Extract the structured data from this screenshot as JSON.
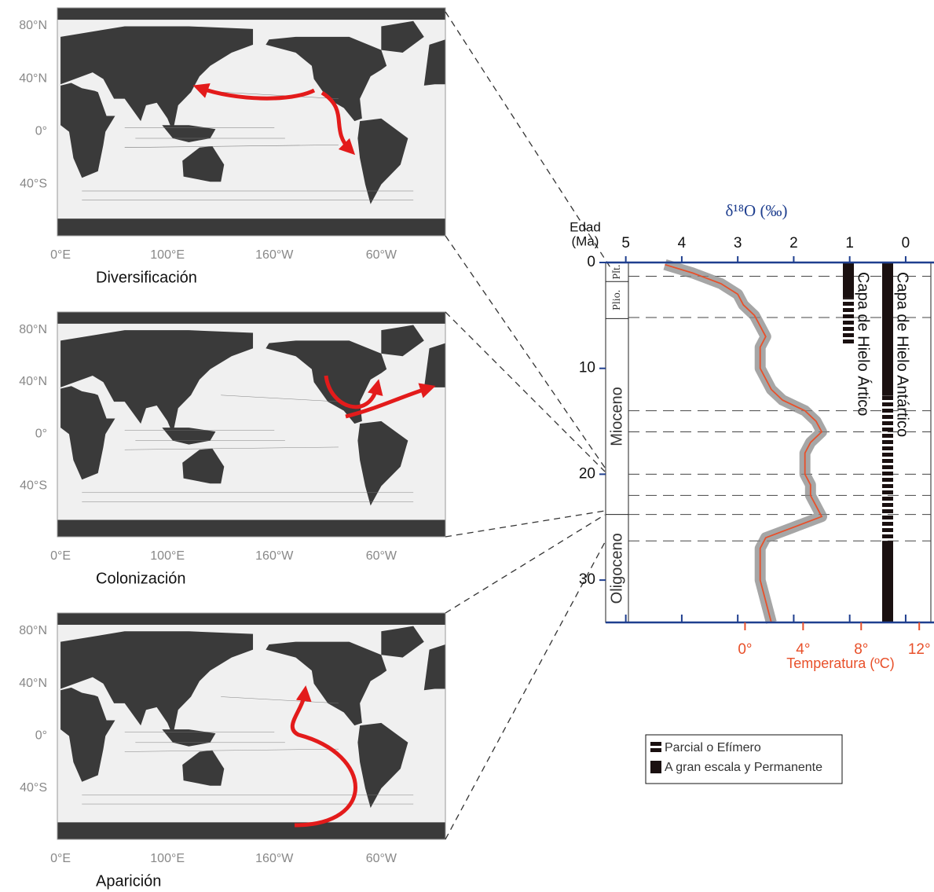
{
  "maps": [
    {
      "caption": "Diversificación",
      "lat_labels": [
        "80°N",
        "40°N",
        "0°",
        "40°S"
      ],
      "lon_labels": [
        "0°E",
        "100°E",
        "160°W",
        "60°W"
      ]
    },
    {
      "caption": "Colonización",
      "lat_labels": [
        "80°N",
        "40°N",
        "0°",
        "40°S"
      ],
      "lon_labels": [
        "0°E",
        "100°E",
        "160°W",
        "60°W"
      ]
    },
    {
      "caption": "Aparición",
      "lat_labels": [
        "80°N",
        "40°N",
        "0°",
        "40°S"
      ],
      "lon_labels": [
        "0°E",
        "100°E",
        "160°W",
        "60°W"
      ]
    }
  ],
  "chart_data": {
    "type": "line",
    "x_label": "δ¹⁸O (‰)",
    "x2_label": "Temperatura (ºC)",
    "y_label": "Edad",
    "y_label_unit": "(Ma)",
    "xlim": [
      5.36,
      -0.45
    ],
    "xticks": [
      5,
      4,
      3,
      2,
      1,
      0
    ],
    "x2lim": [
      -9.6,
      12.8
    ],
    "x2ticks": [
      {
        "value": 0,
        "label": "0°"
      },
      {
        "value": 4,
        "label": "4°"
      },
      {
        "value": 8,
        "label": "8°"
      },
      {
        "value": 12,
        "label": "12°"
      }
    ],
    "ylim": [
      0,
      34
    ],
    "yticks": [
      0,
      10,
      20,
      30
    ],
    "series": [
      {
        "color": "#e8502a",
        "ages": [
          0.2,
          1,
          2,
          3,
          4,
          5,
          6,
          7,
          8,
          10,
          12,
          13,
          14,
          15,
          16,
          17,
          18,
          19,
          20,
          21,
          22,
          23,
          24,
          25,
          26,
          27,
          28,
          30,
          32,
          34
        ],
        "values": [
          4.3,
          3.8,
          3.3,
          3.0,
          2.9,
          2.7,
          2.6,
          2.5,
          2.6,
          2.6,
          2.4,
          2.2,
          1.8,
          1.6,
          1.5,
          1.7,
          1.8,
          1.8,
          1.8,
          1.7,
          1.7,
          1.6,
          1.5,
          2.0,
          2.5,
          2.6,
          2.6,
          2.6,
          2.5,
          2.4
        ]
      }
    ],
    "epochs": [
      {
        "label": "Plt.",
        "from": 0,
        "to": 1.8
      },
      {
        "label": "Plio.",
        "from": 1.8,
        "to": 5.3
      },
      {
        "label": "Mioceno",
        "from": 5.3,
        "to": 23.8
      },
      {
        "label": "Oligoceno",
        "from": 23.8,
        "to": 34
      }
    ],
    "event_lines": [
      1.3,
      5.2,
      14,
      16,
      20,
      22,
      23.8,
      26.3
    ],
    "ice_sheets": [
      {
        "label": "Capa de Hielo Ártico",
        "permanent": [
          [
            0,
            3.4
          ]
        ],
        "partial": [
          [
            3.4,
            7.7
          ]
        ]
      },
      {
        "label": "Capa de Hielo Antártico",
        "permanent": [
          [
            0,
            12.6
          ],
          [
            26.3,
            34
          ]
        ],
        "partial": [
          [
            12.6,
            26.3
          ]
        ]
      }
    ],
    "legend": [
      "Parcial o Efímero",
      "A gran escala y Permanente"
    ]
  }
}
